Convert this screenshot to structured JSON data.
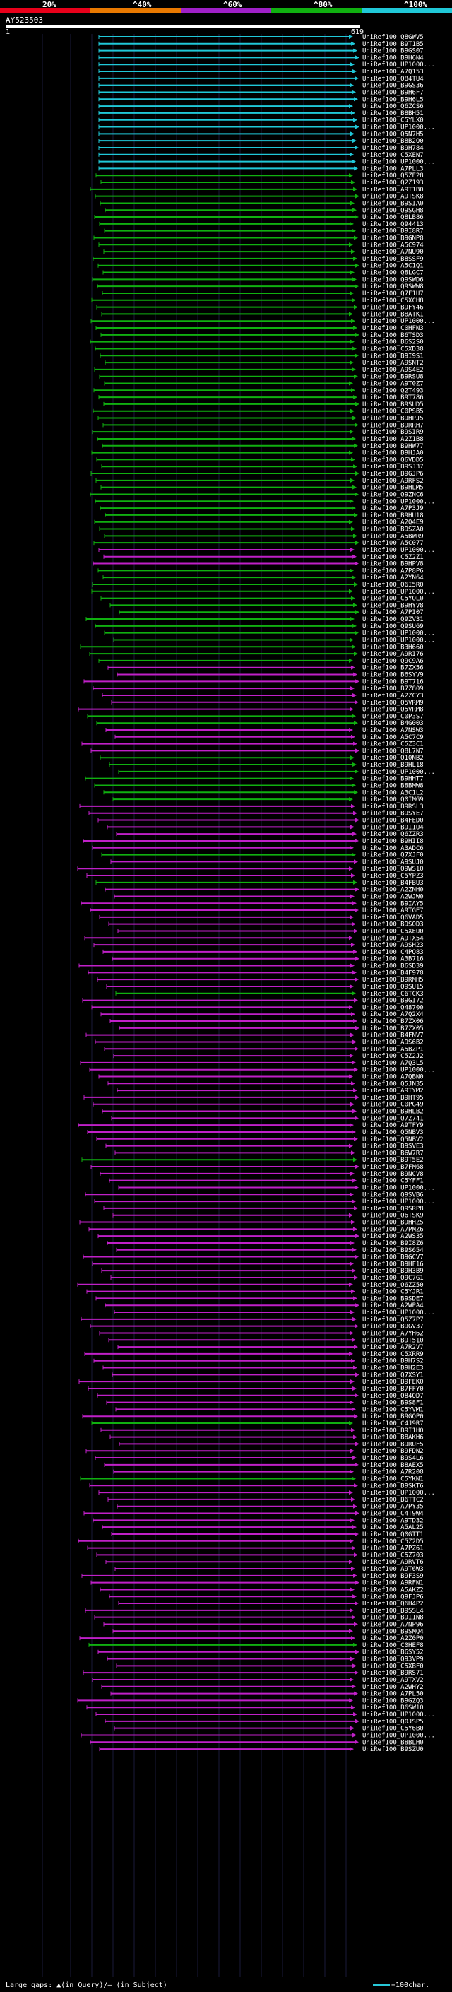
{
  "legend": {
    "labels": [
      "20%",
      "^40%",
      "^60%",
      "^80%",
      "^100%"
    ],
    "colors": [
      "#e8001a",
      "#e87800",
      "#a020c8",
      "#10b010",
      "#20c8d8"
    ]
  },
  "query": {
    "name": "AY523503",
    "start": "1",
    "end": "619"
  },
  "hits": [
    {
      "label": "UniRef100_Q8GWV5",
      "color": "cyan"
    },
    {
      "label": "UniRef100_B9T1B5",
      "color": "cyan"
    },
    {
      "label": "UniRef100_B9GS07",
      "color": "cyan"
    },
    {
      "label": "UniRef100_B9H6N4",
      "color": "cyan"
    },
    {
      "label": "UniRef100_UP1000...",
      "color": "cyan"
    },
    {
      "label": "UniRef100_A7Q153",
      "color": "cyan"
    },
    {
      "label": "UniRef100_Q84TU4",
      "color": "cyan"
    },
    {
      "label": "UniRef100_B9GS36",
      "color": "cyan"
    },
    {
      "label": "UniRef100_B9H6F7",
      "color": "cyan"
    },
    {
      "label": "UniRef100_B9H6L5",
      "color": "cyan"
    },
    {
      "label": "UniRef100_Q6ZCS6",
      "color": "cyan"
    },
    {
      "label": "UniRef100_B8BH51",
      "color": "cyan"
    },
    {
      "label": "UniRef100_C5YLX0",
      "color": "cyan"
    },
    {
      "label": "UniRef100_UP1000...",
      "color": "cyan"
    },
    {
      "label": "UniRef100_Q5N7H5",
      "color": "cyan"
    },
    {
      "label": "UniRef100_B8B2Q0",
      "color": "cyan"
    },
    {
      "label": "UniRef100_B9H784",
      "color": "cyan"
    },
    {
      "label": "UniRef100_C5XEN7",
      "color": "cyan"
    },
    {
      "label": "UniRef100_UP1000...",
      "color": "cyan"
    },
    {
      "label": "UniRef100_A7PLL3",
      "color": "cyan"
    },
    {
      "label": "UniRef100_Q5ZE28",
      "color": "green"
    },
    {
      "label": "UniRef100_Q2Z193",
      "color": "green"
    },
    {
      "label": "UniRef100_A9T1B0",
      "color": "green"
    },
    {
      "label": "UniRef100_A9TSK8",
      "color": "green"
    },
    {
      "label": "UniRef100_B9SIA0",
      "color": "green"
    },
    {
      "label": "UniRef100_Q9SGH8",
      "color": "green"
    },
    {
      "label": "UniRef100_Q8LB86",
      "color": "green"
    },
    {
      "label": "UniRef100_Q94413",
      "color": "green"
    },
    {
      "label": "UniRef100_B9I8R7",
      "color": "green"
    },
    {
      "label": "UniRef100_B9GNP8",
      "color": "green"
    },
    {
      "label": "UniRef100_A5C974",
      "color": "green"
    },
    {
      "label": "UniRef100_A7NU90",
      "color": "green"
    },
    {
      "label": "UniRef100_B8SSF9",
      "color": "green"
    },
    {
      "label": "UniRef100_A5C1Q1",
      "color": "green"
    },
    {
      "label": "UniRef100_Q8LGC7",
      "color": "green"
    },
    {
      "label": "UniRef100_Q9SWD6",
      "color": "green"
    },
    {
      "label": "UniRef100_Q9SWW8",
      "color": "green"
    },
    {
      "label": "UniRef100_Q7F1U7",
      "color": "green"
    },
    {
      "label": "UniRef100_C5XCH8",
      "color": "green"
    },
    {
      "label": "UniRef100_B9FY46",
      "color": "green"
    },
    {
      "label": "UniRef100_B8ATK1",
      "color": "green"
    },
    {
      "label": "UniRef100_UP1000...",
      "color": "green"
    },
    {
      "label": "UniRef100_C0HFN3",
      "color": "green"
    },
    {
      "label": "UniRef100_B6TSD3",
      "color": "green"
    },
    {
      "label": "UniRef100_B6S2S0",
      "color": "green"
    },
    {
      "label": "UniRef100_C5XD38",
      "color": "green"
    },
    {
      "label": "UniRef100_B9I9S1",
      "color": "green"
    },
    {
      "label": "UniRef100_A9SNT2",
      "color": "green"
    },
    {
      "label": "UniRef100_A9S4E2",
      "color": "green"
    },
    {
      "label": "UniRef100_B9RSU8",
      "color": "green"
    },
    {
      "label": "UniRef100_A9T0Z7",
      "color": "green"
    },
    {
      "label": "UniRef100_Q2T493",
      "color": "green"
    },
    {
      "label": "UniRef100_B9T786",
      "color": "green"
    },
    {
      "label": "UniRef100_B9SUD5",
      "color": "green"
    },
    {
      "label": "UniRef100_C0PSB5",
      "color": "green"
    },
    {
      "label": "UniRef100_B9HPJ5",
      "color": "green"
    },
    {
      "label": "UniRef100_B9RRH7",
      "color": "green"
    },
    {
      "label": "UniRef100_B9SIR9",
      "color": "green"
    },
    {
      "label": "UniRef100_A2Z1B8",
      "color": "green"
    },
    {
      "label": "UniRef100_B9HW77",
      "color": "green"
    },
    {
      "label": "UniRef100_B9HJA0",
      "color": "green"
    },
    {
      "label": "UniRef100_Q6VDD5",
      "color": "green"
    },
    {
      "label": "UniRef100_B9SJ37",
      "color": "green"
    },
    {
      "label": "UniRef100_B9GJP6",
      "color": "green"
    },
    {
      "label": "UniRef100_A9RFS2",
      "color": "green"
    },
    {
      "label": "UniRef100_B9HLM5",
      "color": "green"
    },
    {
      "label": "UniRef100_Q9ZNC6",
      "color": "green"
    },
    {
      "label": "UniRef100_UP1000...",
      "color": "green"
    },
    {
      "label": "UniRef100_A7P3J9",
      "color": "green"
    },
    {
      "label": "UniRef100_B9HU18",
      "color": "green"
    },
    {
      "label": "UniRef100_A2Q4E9",
      "color": "green"
    },
    {
      "label": "UniRef100_B9SZA0",
      "color": "green"
    },
    {
      "label": "UniRef100_A5BWR9",
      "color": "green"
    },
    {
      "label": "UniRef100_A5C077",
      "color": "green"
    },
    {
      "label": "UniRef100_UP1000...",
      "color": "magenta"
    },
    {
      "label": "UniRef100_C5Z2Z1",
      "color": "magenta"
    },
    {
      "label": "UniRef100_B9HPV8",
      "color": "magenta"
    },
    {
      "label": "UniRef100_A7P8P6",
      "color": "green"
    },
    {
      "label": "UniRef100_A2YN64",
      "color": "green"
    },
    {
      "label": "UniRef100_Q6I5R0",
      "color": "green"
    },
    {
      "label": "UniRef100_UP1000...",
      "color": "green"
    },
    {
      "label": "UniRef100_C5YOL0",
      "color": "green"
    },
    {
      "label": "UniRef100_B9HYV8",
      "color": "green"
    },
    {
      "label": "UniRef100_A7PI07",
      "color": "green"
    },
    {
      "label": "UniRef100_Q9ZV31",
      "color": "green"
    },
    {
      "label": "UniRef100_Q9SU69",
      "color": "green"
    },
    {
      "label": "UniRef100_UP1000...",
      "color": "green"
    },
    {
      "label": "UniRef100_UP1000...",
      "color": "green"
    },
    {
      "label": "UniRef100_B3H660",
      "color": "green"
    },
    {
      "label": "UniRef100_A9RI76",
      "color": "green"
    },
    {
      "label": "UniRef100_Q9C9A6",
      "color": "green"
    },
    {
      "label": "UniRef100_B7ZX56",
      "color": "magenta"
    },
    {
      "label": "UniRef100_B6SYV9",
      "color": "magenta"
    },
    {
      "label": "UniRef100_B9T716",
      "color": "magenta"
    },
    {
      "label": "UniRef100_B7Z809",
      "color": "magenta"
    },
    {
      "label": "UniRef100_A2ZCY3",
      "color": "magenta"
    },
    {
      "label": "UniRef100_Q5VRM9",
      "color": "magenta"
    },
    {
      "label": "UniRef100_Q5VRM8",
      "color": "magenta"
    },
    {
      "label": "UniRef100_C0P3S7",
      "color": "green"
    },
    {
      "label": "UniRef100_B4G003",
      "color": "green"
    },
    {
      "label": "UniRef100_A7NSW3",
      "color": "magenta"
    },
    {
      "label": "UniRef100_A5C7C9",
      "color": "magenta"
    },
    {
      "label": "UniRef100_C5Z3C1",
      "color": "magenta"
    },
    {
      "label": "UniRef100_Q8L7N7",
      "color": "magenta"
    },
    {
      "label": "UniRef100_Q10NB2",
      "color": "green"
    },
    {
      "label": "UniRef100_B9HL18",
      "color": "green"
    },
    {
      "label": "UniRef100_UP1000...",
      "color": "green"
    },
    {
      "label": "UniRef100_B9HHT7",
      "color": "green"
    },
    {
      "label": "UniRef100_B8BMW8",
      "color": "green"
    },
    {
      "label": "UniRef100_A3C1L2",
      "color": "green"
    },
    {
      "label": "UniRef100_Q0IMG9",
      "color": "green"
    },
    {
      "label": "UniRef100_B9RSL3",
      "color": "magenta"
    },
    {
      "label": "UniRef100_B9SYE7",
      "color": "magenta"
    },
    {
      "label": "UniRef100_B4FED0",
      "color": "magenta"
    },
    {
      "label": "UniRef100_B9I1U4",
      "color": "magenta"
    },
    {
      "label": "UniRef100_Q6ZZR3",
      "color": "magenta"
    },
    {
      "label": "UniRef100_B9HII8",
      "color": "magenta"
    },
    {
      "label": "UniRef100_A3ADC6",
      "color": "magenta"
    },
    {
      "label": "UniRef100_Q7XJF0",
      "color": "green"
    },
    {
      "label": "UniRef100_A9SUJ0",
      "color": "magenta"
    },
    {
      "label": "UniRef100_Q9WS10",
      "color": "magenta"
    },
    {
      "label": "UniRef100_C5YPZ3",
      "color": "magenta"
    },
    {
      "label": "UniRef100_B4FBU3",
      "color": "green"
    },
    {
      "label": "UniRef100_A2ZNH0",
      "color": "magenta"
    },
    {
      "label": "UniRef100_A2WJW0",
      "color": "magenta"
    },
    {
      "label": "UniRef100_B9IAY5",
      "color": "magenta"
    },
    {
      "label": "UniRef100_A9TGE7",
      "color": "magenta"
    },
    {
      "label": "UniRef100_Q6VAD5",
      "color": "magenta"
    },
    {
      "label": "UniRef100_B9SQD3",
      "color": "magenta"
    },
    {
      "label": "UniRef100_C5XEU0",
      "color": "magenta"
    },
    {
      "label": "UniRef100_A9TX54",
      "color": "magenta"
    },
    {
      "label": "UniRef100_A9SH23",
      "color": "magenta"
    },
    {
      "label": "UniRef100_C4PQ83",
      "color": "magenta"
    },
    {
      "label": "UniRef100_A3B716",
      "color": "magenta"
    },
    {
      "label": "UniRef100_B6SD39",
      "color": "magenta"
    },
    {
      "label": "UniRef100_B4F978",
      "color": "magenta"
    },
    {
      "label": "UniRef100_B9RMH5",
      "color": "magenta"
    },
    {
      "label": "UniRef100_Q9SU15",
      "color": "magenta"
    },
    {
      "label": "UniRef100_C6TCK3",
      "color": "green"
    },
    {
      "label": "UniRef100_B9GI72",
      "color": "magenta"
    },
    {
      "label": "UniRef100_Q48700",
      "color": "magenta"
    },
    {
      "label": "UniRef100_A7Q2X4",
      "color": "magenta"
    },
    {
      "label": "UniRef100_B7ZX06",
      "color": "magenta"
    },
    {
      "label": "UniRef100_B7ZX05",
      "color": "magenta"
    },
    {
      "label": "UniRef100_B4FNV7",
      "color": "magenta"
    },
    {
      "label": "UniRef100_A9S6B2",
      "color": "magenta"
    },
    {
      "label": "UniRef100_A5BZP1",
      "color": "magenta"
    },
    {
      "label": "UniRef100_C5Z2J2",
      "color": "magenta"
    },
    {
      "label": "UniRef100_A7Q3L5",
      "color": "magenta"
    },
    {
      "label": "UniRef100_UP1000...",
      "color": "magenta"
    },
    {
      "label": "UniRef100_A7QBN0",
      "color": "magenta"
    },
    {
      "label": "UniRef100_Q5JN35",
      "color": "magenta"
    },
    {
      "label": "UniRef100_A9TYM2",
      "color": "magenta"
    },
    {
      "label": "UniRef100_B9HT95",
      "color": "magenta"
    },
    {
      "label": "UniRef100_C0PG49",
      "color": "magenta"
    },
    {
      "label": "UniRef100_B9HLB2",
      "color": "magenta"
    },
    {
      "label": "UniRef100_Q7Z741",
      "color": "magenta"
    },
    {
      "label": "UniRef100_A9TFY9",
      "color": "magenta"
    },
    {
      "label": "UniRef100_Q5NBV3",
      "color": "magenta"
    },
    {
      "label": "UniRef100_Q5NBV2",
      "color": "magenta"
    },
    {
      "label": "UniRef100_B9SVE3",
      "color": "magenta"
    },
    {
      "label": "UniRef100_B6W7R7",
      "color": "magenta"
    },
    {
      "label": "UniRef100_B9T5E2",
      "color": "green"
    },
    {
      "label": "UniRef100_B7FM68",
      "color": "magenta"
    },
    {
      "label": "UniRef100_B9NCV8",
      "color": "magenta"
    },
    {
      "label": "UniRef100_C5YFF1",
      "color": "magenta"
    },
    {
      "label": "UniRef100_UP1000...",
      "color": "magenta"
    },
    {
      "label": "UniRef100_Q9SVB6",
      "color": "magenta"
    },
    {
      "label": "UniRef100_UP1000...",
      "color": "magenta"
    },
    {
      "label": "UniRef100_Q9SRP8",
      "color": "magenta"
    },
    {
      "label": "UniRef100_Q6TSK9",
      "color": "magenta"
    },
    {
      "label": "UniRef100_B9HHZ5",
      "color": "magenta"
    },
    {
      "label": "UniRef100_A7PMZ6",
      "color": "magenta"
    },
    {
      "label": "UniRef100_A2WS35",
      "color": "magenta"
    },
    {
      "label": "UniRef100_B9I8Z6",
      "color": "magenta"
    },
    {
      "label": "UniRef100_B9S654",
      "color": "magenta"
    },
    {
      "label": "UniRef100_B9GCV7",
      "color": "magenta"
    },
    {
      "label": "UniRef100_B9HF16",
      "color": "magenta"
    },
    {
      "label": "UniRef100_B9H3B9",
      "color": "magenta"
    },
    {
      "label": "UniRef100_Q9C7G1",
      "color": "magenta"
    },
    {
      "label": "UniRef100_Q6ZZ50",
      "color": "magenta"
    },
    {
      "label": "UniRef100_C5YJR1",
      "color": "magenta"
    },
    {
      "label": "UniRef100_B9SDE7",
      "color": "magenta"
    },
    {
      "label": "UniRef100_A2WPA4",
      "color": "magenta"
    },
    {
      "label": "UniRef100_UP1000...",
      "color": "magenta"
    },
    {
      "label": "UniRef100_Q5Z7P7",
      "color": "magenta"
    },
    {
      "label": "UniRef100_B9GV37",
      "color": "magenta"
    },
    {
      "label": "UniRef100_A7YH62",
      "color": "magenta"
    },
    {
      "label": "UniRef100_B9T510",
      "color": "magenta"
    },
    {
      "label": "UniRef100_A7R2V7",
      "color": "magenta"
    },
    {
      "label": "UniRef100_C5XRR9",
      "color": "magenta"
    },
    {
      "label": "UniRef100_B9H7S2",
      "color": "magenta"
    },
    {
      "label": "UniRef100_B9H2E3",
      "color": "magenta"
    },
    {
      "label": "UniRef100_Q7XSY1",
      "color": "magenta"
    },
    {
      "label": "UniRef100_B9FEK0",
      "color": "magenta"
    },
    {
      "label": "UniRef100_B7FFY0",
      "color": "magenta"
    },
    {
      "label": "UniRef100_Q84QD7",
      "color": "magenta"
    },
    {
      "label": "UniRef100_B9S8F1",
      "color": "magenta"
    },
    {
      "label": "UniRef100_C5YVM1",
      "color": "magenta"
    },
    {
      "label": "UniRef100_B9GQP0",
      "color": "magenta"
    },
    {
      "label": "UniRef100_C4J9R7",
      "color": "green"
    },
    {
      "label": "UniRef100_B9I1H0",
      "color": "magenta"
    },
    {
      "label": "UniRef100_B8AKH6",
      "color": "magenta"
    },
    {
      "label": "UniRef100_B9RUF5",
      "color": "magenta"
    },
    {
      "label": "UniRef100_B9FDN2",
      "color": "magenta"
    },
    {
      "label": "UniRef100_B9S4L6",
      "color": "magenta"
    },
    {
      "label": "UniRef100_B8AEX5",
      "color": "magenta"
    },
    {
      "label": "UniRef100_A7R208",
      "color": "magenta"
    },
    {
      "label": "UniRef100_C5YKN1",
      "color": "green"
    },
    {
      "label": "UniRef100_B9SKT6",
      "color": "magenta"
    },
    {
      "label": "UniRef100_UP1000...",
      "color": "magenta"
    },
    {
      "label": "UniRef100_B6TTC2",
      "color": "magenta"
    },
    {
      "label": "UniRef100_A7PY35",
      "color": "magenta"
    },
    {
      "label": "UniRef100_C4T9W4",
      "color": "magenta"
    },
    {
      "label": "UniRef100_A9TD32",
      "color": "magenta"
    },
    {
      "label": "UniRef100_A5AL25",
      "color": "magenta"
    },
    {
      "label": "UniRef100_Q0GTT1",
      "color": "magenta"
    },
    {
      "label": "UniRef100_C5Z2D5",
      "color": "magenta"
    },
    {
      "label": "UniRef100_A7PZ61",
      "color": "magenta"
    },
    {
      "label": "UniRef100_C5Z703",
      "color": "magenta"
    },
    {
      "label": "UniRef100_A9RVT6",
      "color": "magenta"
    },
    {
      "label": "UniRef100_A9T6W3",
      "color": "magenta"
    },
    {
      "label": "UniRef100_B9F3S9",
      "color": "magenta"
    },
    {
      "label": "UniRef100_A9RFN1",
      "color": "magenta"
    },
    {
      "label": "UniRef100_A5AKZ2",
      "color": "magenta"
    },
    {
      "label": "UniRef100_Q9FJP6",
      "color": "magenta"
    },
    {
      "label": "UniRef100_Q6H4P2",
      "color": "magenta"
    },
    {
      "label": "UniRef100_B9SSL4",
      "color": "magenta"
    },
    {
      "label": "UniRef100_B9I1N8",
      "color": "magenta"
    },
    {
      "label": "UniRef100_A7NP96",
      "color": "magenta"
    },
    {
      "label": "UniRef100_B9SMQ4",
      "color": "magenta"
    },
    {
      "label": "UniRef100_A2Z0P0",
      "color": "magenta"
    },
    {
      "label": "UniRef100_C0HEF8",
      "color": "green"
    },
    {
      "label": "UniRef100_B6SY52",
      "color": "magenta"
    },
    {
      "label": "UniRef100_Q93VP9",
      "color": "magenta"
    },
    {
      "label": "UniRef100_C5XBF0",
      "color": "magenta"
    },
    {
      "label": "UniRef100_B9RS71",
      "color": "magenta"
    },
    {
      "label": "UniRef100_A9TXV2",
      "color": "magenta"
    },
    {
      "label": "UniRef100_A2WHY2",
      "color": "magenta"
    },
    {
      "label": "UniRef100_A7PL50",
      "color": "magenta"
    },
    {
      "label": "UniRef100_B9GZQ3",
      "color": "magenta"
    },
    {
      "label": "UniRef100_B6SW10",
      "color": "magenta"
    },
    {
      "label": "UniRef100_UP1000...",
      "color": "magenta"
    },
    {
      "label": "UniRef100_Q0JSP5",
      "color": "magenta"
    },
    {
      "label": "UniRef100_C5Y6B0",
      "color": "magenta"
    },
    {
      "label": "UniRef100_UP1000...",
      "color": "magenta"
    },
    {
      "label": "UniRef100_B8BLH0",
      "color": "magenta"
    },
    {
      "label": "UniRef100_B9SZU0",
      "color": "magenta"
    }
  ],
  "footer": {
    "large_gaps": "Large gaps: ▲(in Query)/– (in Subject)",
    "scale": "=100char."
  },
  "colors": {
    "cyan": "#20c8d8",
    "green": "#10b010",
    "magenta": "#c020c8",
    "grid": "#1a1a3a",
    "background": "#000000"
  }
}
